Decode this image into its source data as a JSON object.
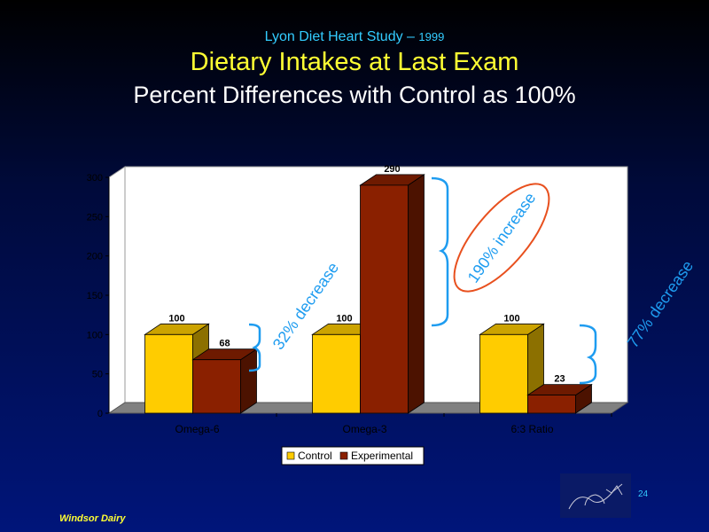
{
  "header": {
    "study": "Lyon Diet Heart Study – ",
    "year": "1999",
    "title": "Dietary Intakes at Last Exam",
    "subtitle": "Percent Differences with Control as 100%"
  },
  "chart_data": {
    "type": "bar",
    "categories": [
      "Omega-6",
      "Omega-3",
      "6:3 Ratio"
    ],
    "series": [
      {
        "name": "Control",
        "values": [
          100,
          100,
          100
        ],
        "color": "#ffcc00"
      },
      {
        "name": "Experimental",
        "values": [
          68,
          290,
          23
        ],
        "color": "#8a2000"
      }
    ],
    "data_labels": [
      [
        "100",
        "100",
        "100"
      ],
      [
        "68",
        "290",
        "23"
      ]
    ],
    "ylim": [
      0,
      300
    ],
    "yticks": [
      0,
      50,
      100,
      150,
      200,
      250,
      300
    ],
    "grid": false,
    "legend_position": "bottom",
    "annotations": [
      {
        "text": "32% decrease",
        "category": "Omega-6"
      },
      {
        "text": "190% increase",
        "category": "Omega-3",
        "circled": true
      },
      {
        "text": "77% decrease",
        "category": "6:3 Ratio"
      }
    ],
    "colors": {
      "plot_bg": "#ffffff",
      "floor": "#808080",
      "annotation": "#1e9cf0",
      "ellipse": "#e8501e"
    }
  },
  "footer": {
    "brand": "Windsor Dairy",
    "page": "24"
  }
}
